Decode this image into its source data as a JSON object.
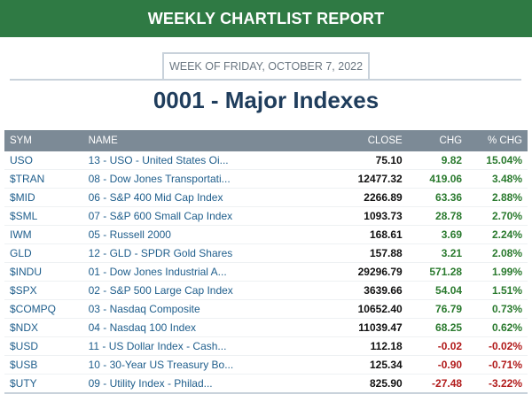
{
  "header": {
    "banner": "WEEKLY CHARTLIST REPORT",
    "week_of": "WEEK OF FRIDAY, OCTOBER 7, 2022",
    "title": "0001 - Major Indexes"
  },
  "table": {
    "columns": [
      "SYM",
      "NAME",
      "CLOSE",
      "CHG",
      "% CHG"
    ],
    "rows": [
      {
        "sym": "USO",
        "name": "13 - USO - United States Oi...",
        "close": "75.10",
        "chg": "9.82",
        "pct": "15.04%",
        "dir": "pos"
      },
      {
        "sym": "$TRAN",
        "name": "08 - Dow Jones Transportati...",
        "close": "12477.32",
        "chg": "419.06",
        "pct": "3.48%",
        "dir": "pos"
      },
      {
        "sym": "$MID",
        "name": "06 - S&P 400 Mid Cap Index",
        "close": "2266.89",
        "chg": "63.36",
        "pct": "2.88%",
        "dir": "pos"
      },
      {
        "sym": "$SML",
        "name": "07 - S&P 600 Small Cap Index",
        "close": "1093.73",
        "chg": "28.78",
        "pct": "2.70%",
        "dir": "pos"
      },
      {
        "sym": "IWM",
        "name": "05 - Russell 2000",
        "close": "168.61",
        "chg": "3.69",
        "pct": "2.24%",
        "dir": "pos"
      },
      {
        "sym": "GLD",
        "name": "12 - GLD - SPDR Gold Shares",
        "close": "157.88",
        "chg": "3.21",
        "pct": "2.08%",
        "dir": "pos"
      },
      {
        "sym": "$INDU",
        "name": "01 - Dow Jones Industrial A...",
        "close": "29296.79",
        "chg": "571.28",
        "pct": "1.99%",
        "dir": "pos"
      },
      {
        "sym": "$SPX",
        "name": "02 - S&P 500 Large Cap Index",
        "close": "3639.66",
        "chg": "54.04",
        "pct": "1.51%",
        "dir": "pos"
      },
      {
        "sym": "$COMPQ",
        "name": "03 - Nasdaq Composite",
        "close": "10652.40",
        "chg": "76.79",
        "pct": "0.73%",
        "dir": "pos"
      },
      {
        "sym": "$NDX",
        "name": "04 - Nasdaq 100 Index",
        "close": "11039.47",
        "chg": "68.25",
        "pct": "0.62%",
        "dir": "pos"
      },
      {
        "sym": "$USD",
        "name": "11 - US Dollar Index - Cash...",
        "close": "112.18",
        "chg": "-0.02",
        "pct": "-0.02%",
        "dir": "neg"
      },
      {
        "sym": "$USB",
        "name": "10 - 30-Year US Treasury Bo...",
        "close": "125.34",
        "chg": "-0.90",
        "pct": "-0.71%",
        "dir": "neg"
      },
      {
        "sym": "$UTY",
        "name": "09 - Utility Index - Philad...",
        "close": "825.90",
        "chg": "-27.48",
        "pct": "-3.22%",
        "dir": "neg"
      }
    ]
  },
  "colors": {
    "banner": "#2f7a44",
    "title": "#1f3d5c",
    "link": "#1f5e8c",
    "positive": "#2a7a2e",
    "negative": "#b11a1a",
    "header_row": "#7c8a96"
  }
}
